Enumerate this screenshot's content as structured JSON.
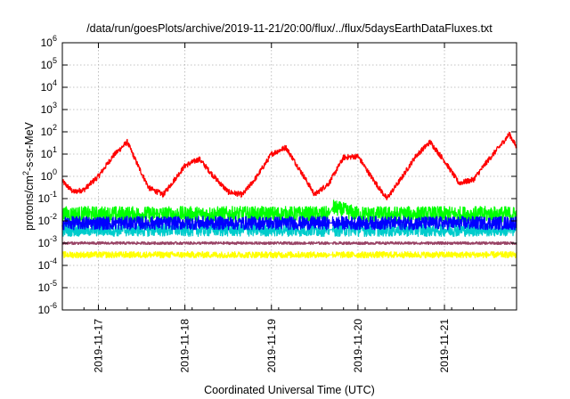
{
  "chart_data": {
    "type": "line",
    "title": "/data/run/goesPlots/archive/2019-11-21/20:00/flux/../flux/5daysEarthDataFluxes.txt",
    "xlabel": "Coordinated Universal Time (UTC)",
    "ylabel_base": "protons/cm",
    "ylabel_exp": "2",
    "ylabel_tail": "-s-sr-MeV",
    "y_scale": "log",
    "ylim": [
      1e-06,
      1000000.0
    ],
    "xlim": [
      "2019-11-16T14:00",
      "2019-11-21T20:00"
    ],
    "grid": true,
    "legend": "none",
    "y_ticks": [
      {
        "base": "10",
        "exp": "-6",
        "value": 1e-06
      },
      {
        "base": "10",
        "exp": "-5",
        "value": 1e-05
      },
      {
        "base": "10",
        "exp": "-4",
        "value": 0.0001
      },
      {
        "base": "10",
        "exp": "-3",
        "value": 0.001
      },
      {
        "base": "10",
        "exp": "-2",
        "value": 0.01
      },
      {
        "base": "10",
        "exp": "-1",
        "value": 0.1
      },
      {
        "base": "10",
        "exp": "0",
        "value": 1
      },
      {
        "base": "10",
        "exp": "1",
        "value": 10
      },
      {
        "base": "10",
        "exp": "2",
        "value": 100
      },
      {
        "base": "10",
        "exp": "3",
        "value": 1000
      },
      {
        "base": "10",
        "exp": "4",
        "value": 10000
      },
      {
        "base": "10",
        "exp": "5",
        "value": 100000
      },
      {
        "base": "10",
        "exp": "6",
        "value": 1000000
      }
    ],
    "x_ticks": [
      {
        "label": "2019-11-17",
        "value": "2019-11-17T00:00"
      },
      {
        "label": "2019-11-18",
        "value": "2019-11-18T00:00"
      },
      {
        "label": "2019-11-19",
        "value": "2019-11-19T00:00"
      },
      {
        "label": "2019-11-20",
        "value": "2019-11-20T00:00"
      },
      {
        "label": "2019-11-21",
        "value": "2019-11-21T00:00"
      }
    ],
    "series": [
      {
        "color": "#ff0000",
        "noise": 0.12,
        "x": [
          "2019-11-16T14:00",
          "2019-11-16T17:00",
          "2019-11-16T20:00",
          "2019-11-17T00:00",
          "2019-11-17T04:00",
          "2019-11-17T08:00",
          "2019-11-17T11:00",
          "2019-11-17T14:00",
          "2019-11-17T18:00",
          "2019-11-18T00:00",
          "2019-11-18T04:00",
          "2019-11-18T08:00",
          "2019-11-18T12:00",
          "2019-11-18T16:00",
          "2019-11-18T20:00",
          "2019-11-19T00:00",
          "2019-11-19T04:00",
          "2019-11-19T09:00",
          "2019-11-19T12:00",
          "2019-11-19T16:00",
          "2019-11-19T20:00",
          "2019-11-20T00:00",
          "2019-11-20T04:00",
          "2019-11-20T08:00",
          "2019-11-20T12:00",
          "2019-11-20T16:00",
          "2019-11-20T20:00",
          "2019-11-21T00:00",
          "2019-11-21T04:00",
          "2019-11-21T08:00",
          "2019-11-21T12:00",
          "2019-11-21T16:00",
          "2019-11-21T18:00",
          "2019-11-21T20:00"
        ],
        "y": [
          0.6,
          0.2,
          0.25,
          1.0,
          8,
          35,
          3,
          0.3,
          0.15,
          3,
          6,
          1,
          0.2,
          0.15,
          1,
          10,
          20,
          1,
          0.15,
          0.5,
          7,
          8,
          0.8,
          0.1,
          0.8,
          8,
          35,
          5,
          0.5,
          0.7,
          5,
          30,
          80,
          20
        ]
      },
      {
        "color": "#00ff00",
        "noise": 0.35,
        "x": [
          "2019-11-16T14:00",
          "2019-11-17T12:00",
          "2019-11-18T00:00",
          "2019-11-19T00:00",
          "2019-11-19T16:00",
          "2019-11-19T17:00",
          "2019-11-20T00:00",
          "2019-11-21T00:00",
          "2019-11-21T20:00"
        ],
        "y": [
          0.02,
          0.02,
          0.02,
          0.02,
          0.02,
          0.04,
          0.02,
          0.02,
          0.02
        ]
      },
      {
        "color": "#00cccc",
        "noise": 0.3,
        "x": [
          "2019-11-16T14:00",
          "2019-11-17T12:00",
          "2019-11-18T00:00",
          "2019-11-19T00:00",
          "2019-11-20T00:00",
          "2019-11-21T00:00",
          "2019-11-21T20:00"
        ],
        "y": [
          0.004,
          0.004,
          0.004,
          0.004,
          0.004,
          0.004,
          0.004
        ]
      },
      {
        "color": "#0000ff",
        "noise": 0.3,
        "x": [
          "2019-11-16T14:00",
          "2019-11-17T12:00",
          "2019-11-18T00:00",
          "2019-11-19T00:00",
          "2019-11-20T00:00",
          "2019-11-21T00:00",
          "2019-11-21T20:00"
        ],
        "y": [
          0.008,
          0.008,
          0.008,
          0.008,
          0.008,
          0.008,
          0.008
        ]
      },
      {
        "color": "#ffff00",
        "noise": 0.14,
        "x": [
          "2019-11-16T14:00",
          "2019-11-18T00:00",
          "2019-11-20T00:00",
          "2019-11-21T20:00"
        ],
        "y": [
          0.0003,
          0.0003,
          0.0003,
          0.0003
        ]
      },
      {
        "color": "#994466",
        "noise": 0.06,
        "x": [
          "2019-11-16T14:00",
          "2019-11-18T00:00",
          "2019-11-20T00:00",
          "2019-11-21T20:00"
        ],
        "y": [
          0.001,
          0.001,
          0.001,
          0.001
        ]
      }
    ]
  }
}
